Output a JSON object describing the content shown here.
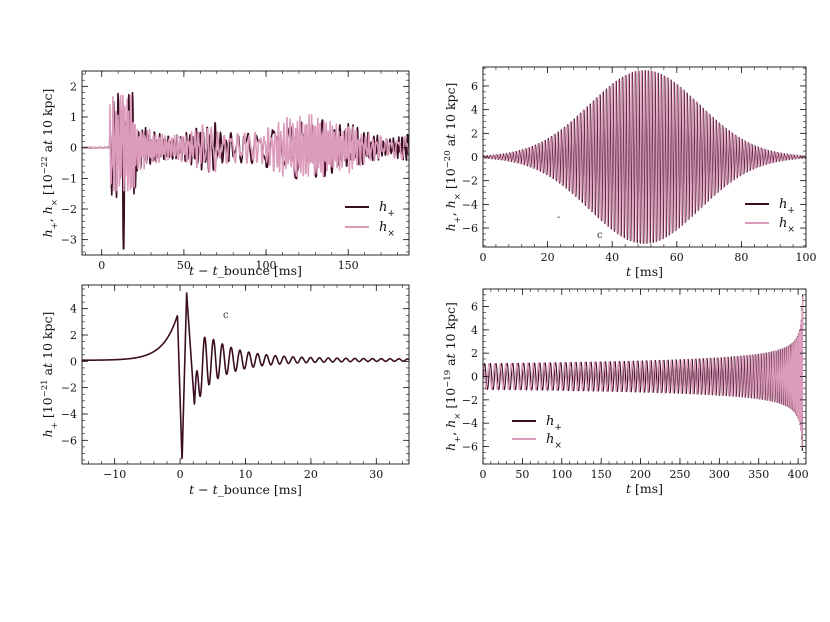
{
  "chart_data": [
    {
      "type": "line",
      "position": "top-left",
      "xlabel": "t − t_bounce [ms]",
      "ylabel": "h+, h× [10⁻²² at 10 kpc]",
      "xlim": [
        -12,
        187
      ],
      "ylim": [
        -3.5,
        2.5
      ],
      "xticks": [
        0,
        50,
        100,
        150
      ],
      "yticks": [
        -3,
        -2,
        -1,
        0,
        1,
        2
      ],
      "legend": "lower-right",
      "series": [
        {
          "name": "h+",
          "color": "#3b0d22",
          "model": "burst",
          "onset": 5,
          "peak": 2.1,
          "trough": -3.3
        },
        {
          "name": "h×",
          "color": "#dc9bbb",
          "model": "burst",
          "onset": 5,
          "peak": 1.7,
          "trough": -1.4
        }
      ]
    },
    {
      "type": "line",
      "position": "top-right",
      "xlabel": "t [ms]",
      "ylabel": "h+, h× [10⁻²⁰ at 10 kpc]",
      "xlim": [
        0,
        100
      ],
      "ylim": [
        -7.6,
        7.6
      ],
      "xticks": [
        0,
        20,
        40,
        60,
        80,
        100
      ],
      "yticks": [
        -6,
        -4,
        -2,
        0,
        2,
        4,
        6
      ],
      "legend": "lower-right",
      "series": [
        {
          "name": "h+",
          "color": "#3b0d22",
          "model": "gaussian-sine",
          "amplitude": 7.3,
          "center": 50,
          "frequency_khz": 1.0
        },
        {
          "name": "h×",
          "color": "#dc9bbb",
          "model": "gaussian-sine",
          "amplitude": 7.3,
          "center": 50,
          "frequency_khz": 1.0
        }
      ]
    },
    {
      "type": "line",
      "position": "bottom-left",
      "xlabel": "t − t_bounce [ms]",
      "ylabel": "h+ [10⁻²¹ at 10 kpc]",
      "xlim": [
        -15,
        35
      ],
      "ylim": [
        -7.8,
        5.8
      ],
      "xticks": [
        -10,
        0,
        10,
        20,
        30
      ],
      "yticks": [
        -6,
        -4,
        -2,
        0,
        2,
        4
      ],
      "series": [
        {
          "name": "h+",
          "color": "#3b0d22",
          "model": "bounce",
          "pre_peak": 3.5,
          "trough": -7.6,
          "peak": 5.2
        }
      ]
    },
    {
      "type": "line",
      "position": "bottom-right",
      "xlabel": "t [ms]",
      "ylabel": "h+, h× [10⁻¹⁹ at 10 kpc]",
      "xlim": [
        0,
        410
      ],
      "ylim": [
        -7.5,
        7.5
      ],
      "xticks": [
        0,
        50,
        100,
        150,
        200,
        250,
        300,
        350,
        400
      ],
      "yticks": [
        -6,
        -4,
        -2,
        0,
        2,
        4,
        6
      ],
      "legend": "lower-left",
      "series": [
        {
          "name": "h+",
          "color": "#3b0d22",
          "model": "chirp",
          "start_amplitude": 1.1,
          "end_amplitude": 7.0,
          "t_coalescence": 406
        },
        {
          "name": "h×",
          "color": "#dc9bbb",
          "model": "chirp",
          "start_amplitude": 1.1,
          "end_amplitude": 7.0,
          "t_coalescence": 406
        }
      ]
    }
  ],
  "legend_labels": {
    "hplus": "h+",
    "hcross": "h×"
  },
  "stray_marks": [
    "-",
    "c",
    "c"
  ]
}
